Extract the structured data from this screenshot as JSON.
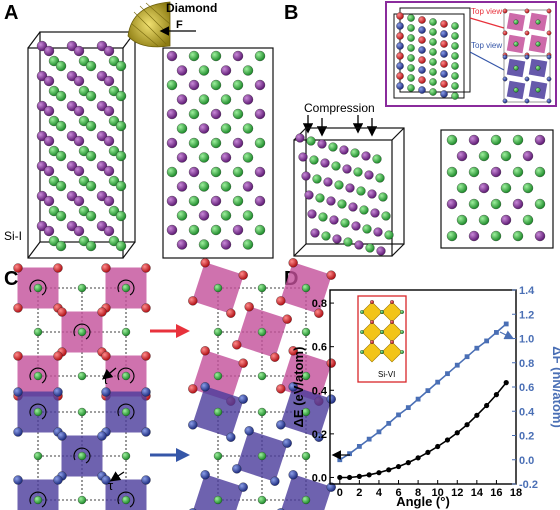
{
  "panels": {
    "a": {
      "label": "A",
      "diamond_label": "Diamond",
      "force_label": "F",
      "phase_label": "Si-I"
    },
    "b": {
      "label": "B",
      "compression_label": "Compression",
      "top_view_1": "Top view",
      "top_view_2": "Top view"
    },
    "c": {
      "label": "C",
      "torque_1": "τ",
      "torque_2": "τ"
    },
    "d": {
      "label": "D",
      "inset_label": "Si-VI"
    }
  },
  "colors": {
    "purple_atom": "#7a2b8f",
    "green_atom": "#2fae3a",
    "red_atom": "#d8262a",
    "blue_atom": "#2c3e9e",
    "pink_square": "#c4509a",
    "violet_square": "#4b3c9c",
    "energy_line": "#000000",
    "force_line": "#4a6fb5",
    "arrow_red": "#e8323c",
    "arrow_blue": "#3556a8"
  },
  "chart_data": {
    "type": "line",
    "xlabel": "Angle (°)",
    "ylabel_left": "ΔE (eV/atom)",
    "ylabel_right": "ΔF (nN/atom)",
    "xlim": [
      -1,
      18
    ],
    "ylim_left": [
      -0.03,
      0.86
    ],
    "ylim_right": [
      -0.2,
      1.4
    ],
    "x_ticks": [
      0,
      2,
      4,
      6,
      8,
      10,
      12,
      14,
      16,
      18
    ],
    "y_ticks_left": [
      0.0,
      0.2,
      0.4,
      0.6,
      0.8
    ],
    "y_ticks_right": [
      -0.2,
      0.0,
      0.2,
      0.4,
      0.6,
      0.8,
      1.0,
      1.2,
      1.4
    ],
    "series": [
      {
        "axis": "left",
        "color": "#000000",
        "x": [
          0,
          1,
          2,
          3,
          4,
          5,
          6,
          7,
          8,
          9,
          10,
          11,
          12,
          13,
          14,
          15,
          16,
          17
        ],
        "y": [
          0.0,
          0.0,
          0.005,
          0.012,
          0.022,
          0.035,
          0.05,
          0.068,
          0.09,
          0.115,
          0.142,
          0.172,
          0.205,
          0.242,
          0.285,
          0.33,
          0.38,
          0.435
        ]
      },
      {
        "axis": "right",
        "color": "#4a6fb5",
        "x": [
          0,
          1,
          2,
          3,
          4,
          5,
          6,
          7,
          8,
          9,
          10,
          11,
          12,
          13,
          14,
          15,
          16,
          17
        ],
        "y": [
          0.0,
          0.05,
          0.11,
          0.17,
          0.23,
          0.3,
          0.37,
          0.43,
          0.5,
          0.57,
          0.64,
          0.71,
          0.78,
          0.85,
          0.92,
          0.98,
          1.05,
          1.12
        ]
      }
    ]
  }
}
